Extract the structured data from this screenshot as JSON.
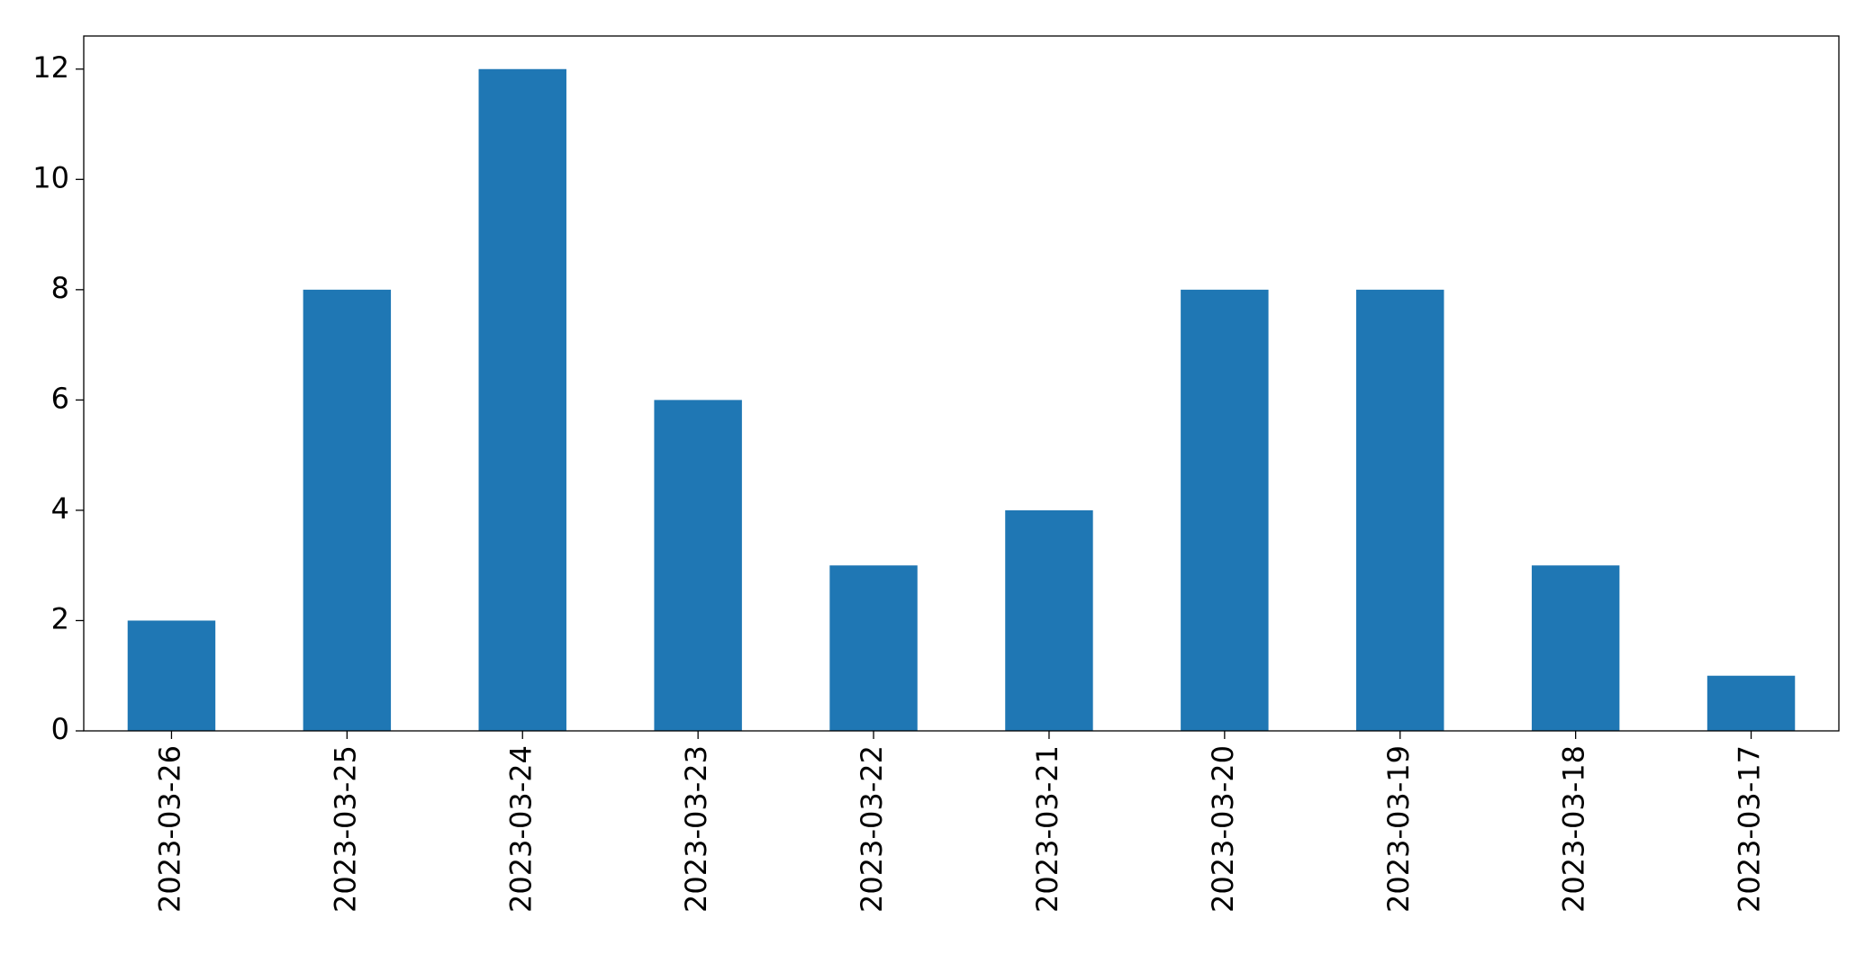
{
  "chart_data": {
    "type": "bar",
    "categories": [
      "2023-03-26",
      "2023-03-25",
      "2023-03-24",
      "2023-03-23",
      "2023-03-22",
      "2023-03-21",
      "2023-03-20",
      "2023-03-19",
      "2023-03-18",
      "2023-03-17"
    ],
    "values": [
      2,
      8,
      12,
      6,
      3,
      4,
      8,
      8,
      3,
      1
    ],
    "color": "#1f77b4",
    "ylim": [
      0,
      12.6
    ],
    "yticks": [
      0,
      2,
      4,
      6,
      8,
      10,
      12
    ],
    "grid": false
  }
}
